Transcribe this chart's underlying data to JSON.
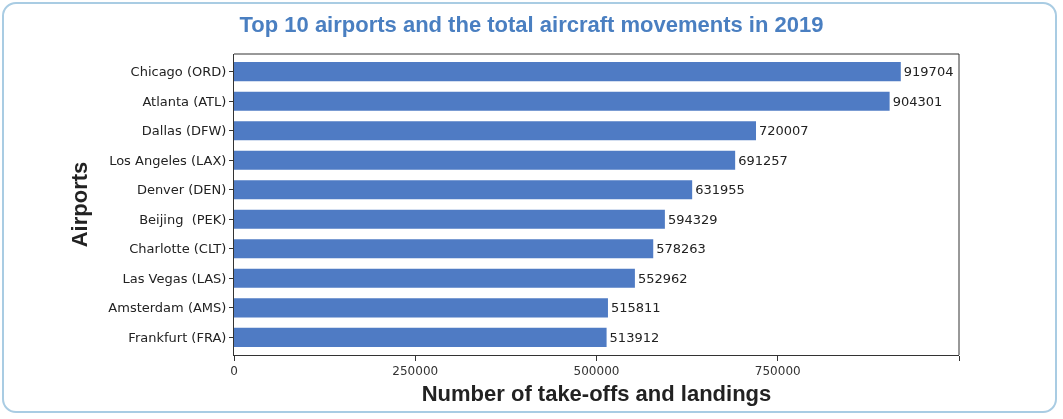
{
  "chart_data": {
    "type": "bar",
    "orientation": "horizontal",
    "title": "Top 10 airports and the total aircraft movements in 2019",
    "xlabel": "Number of take-offs and landings",
    "ylabel": "Airports",
    "categories": [
      "Chicago (ORD)",
      "Atlanta (ATL)",
      "Dallas (DFW)",
      "Los Angeles (LAX)",
      "Denver (DEN)",
      "Beijing  (PEK)",
      "Charlotte (CLT)",
      "Las Vegas (LAS)",
      "Amsterdam (AMS)",
      "Frankfurt (FRA)"
    ],
    "values": [
      919704,
      904301,
      720007,
      691257,
      631955,
      594329,
      578263,
      552962,
      515811,
      513912
    ],
    "color": "#4f7bc4",
    "data_labels": true,
    "xlim": [
      0,
      1000000
    ],
    "xticks": [
      0,
      250000,
      500000,
      750000,
      {
        "value": 1000000,
        "label": null
      }
    ],
    "grid": false
  }
}
